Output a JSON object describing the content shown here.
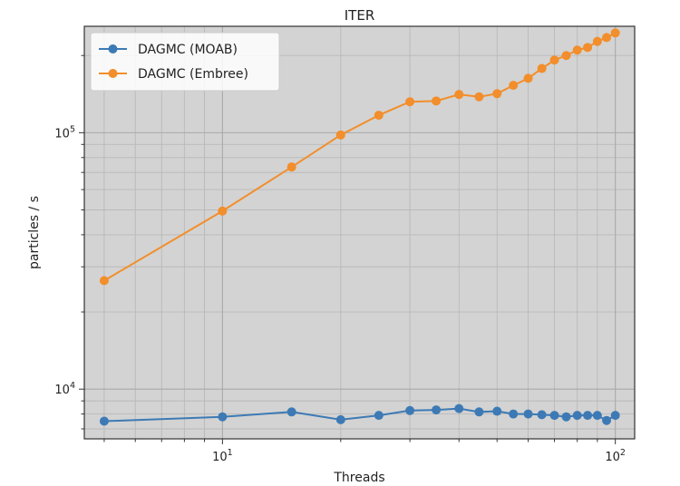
{
  "chart_data": {
    "type": "line",
    "title": "ITER",
    "xlabel": "Threads",
    "ylabel": "particles / s",
    "xscale": "log",
    "yscale": "log",
    "xlim": [
      4.45,
      112
    ],
    "ylim": [
      6400,
      260000
    ],
    "grid": true,
    "legend_position": "top-left",
    "x_ticks": [
      {
        "value": 10,
        "base": "10",
        "exp": "1"
      },
      {
        "value": 100,
        "base": "10",
        "exp": "2"
      }
    ],
    "y_ticks": [
      {
        "value": 10000,
        "base": "10",
        "exp": "4"
      },
      {
        "value": 100000,
        "base": "10",
        "exp": "5"
      }
    ],
    "series": [
      {
        "name": "DAGMC (MOAB)",
        "color": "#3d7ab5",
        "x": [
          5,
          10,
          15,
          20,
          25,
          30,
          35,
          40,
          45,
          50,
          55,
          60,
          65,
          70,
          75,
          80,
          85,
          90,
          95,
          100
        ],
        "y": [
          7500,
          7800,
          8150,
          7600,
          7900,
          8250,
          8300,
          8400,
          8150,
          8200,
          8000,
          8000,
          7950,
          7900,
          7800,
          7900,
          7900,
          7900,
          7550,
          7900
        ]
      },
      {
        "name": "DAGMC (Embree)",
        "color": "#f28e2b",
        "x": [
          5,
          10,
          15,
          20,
          25,
          30,
          35,
          40,
          45,
          50,
          55,
          60,
          65,
          70,
          75,
          80,
          85,
          90,
          95,
          100
        ],
        "y": [
          26500,
          49500,
          73500,
          98000,
          117000,
          132000,
          133000,
          141000,
          138000,
          142000,
          153000,
          163000,
          178000,
          192000,
          200000,
          210000,
          215000,
          227000,
          235000,
          245000
        ]
      }
    ]
  }
}
